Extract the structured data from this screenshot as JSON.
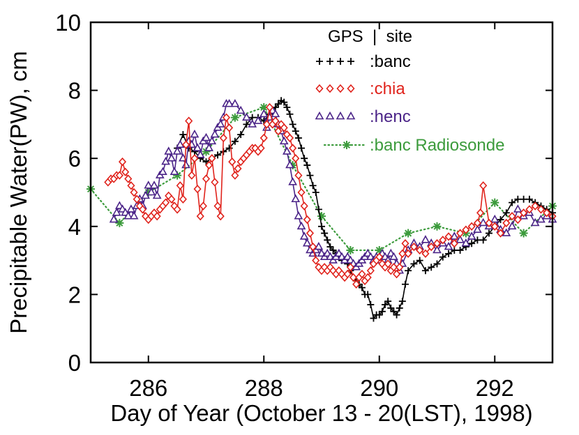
{
  "chart_data": {
    "type": "line",
    "title": "",
    "xlabel": "Day of Year (October 13 - 20(LST), 1998)",
    "ylabel": "Precipitable Water(PW), cm",
    "xlim": [
      285,
      293
    ],
    "ylim": [
      0,
      10
    ],
    "x_ticks": [
      286,
      288,
      290,
      292
    ],
    "y_ticks": [
      0,
      2,
      4,
      6,
      8,
      10
    ],
    "grid": false,
    "legend_position": "top-right",
    "legend_header": "GPS  |  site",
    "series": [
      {
        "name": "banc",
        "legend_marker": "++++",
        "legend_label": ":banc",
        "color": "#000000",
        "marker": "plus",
        "line": "solid",
        "x": [
          286.5,
          286.6,
          286.7,
          286.8,
          286.9,
          287.0,
          287.1,
          287.2,
          287.3,
          287.4,
          287.5,
          287.6,
          287.7,
          287.8,
          287.9,
          288.0,
          288.1,
          288.2,
          288.25,
          288.3,
          288.35,
          288.4,
          288.45,
          288.5,
          288.55,
          288.6,
          288.65,
          288.7,
          288.75,
          288.8,
          288.85,
          288.9,
          288.95,
          289.0,
          289.05,
          289.1,
          289.15,
          289.2,
          289.25,
          289.3,
          289.35,
          289.4,
          289.45,
          289.5,
          289.55,
          289.6,
          289.65,
          289.7,
          289.75,
          289.8,
          289.85,
          289.9,
          289.95,
          290.0,
          290.05,
          290.1,
          290.15,
          290.2,
          290.25,
          290.3,
          290.35,
          290.4,
          290.45,
          290.5,
          290.6,
          290.7,
          290.8,
          290.9,
          291.0,
          291.1,
          291.2,
          291.3,
          291.4,
          291.5,
          291.6,
          291.7,
          291.8,
          291.9,
          292.0,
          292.1,
          292.2,
          292.3,
          292.4,
          292.5,
          292.6,
          292.7,
          292.8,
          292.9,
          293.0
        ],
        "y": [
          6.3,
          6.7,
          6.3,
          6.2,
          6.0,
          5.9,
          6.0,
          6.1,
          6.2,
          6.3,
          6.5,
          6.7,
          7.0,
          7.2,
          7.2,
          7.1,
          7.3,
          7.5,
          7.6,
          7.7,
          7.65,
          7.5,
          7.3,
          7.0,
          6.8,
          6.6,
          6.3,
          6.0,
          5.8,
          5.5,
          5.2,
          5.0,
          4.5,
          4.0,
          3.8,
          3.6,
          3.4,
          3.3,
          3.2,
          3.1,
          3.0,
          3.0,
          2.9,
          2.7,
          2.5,
          2.4,
          2.3,
          2.2,
          2.0,
          2.0,
          1.7,
          1.3,
          1.4,
          1.4,
          1.5,
          1.7,
          1.8,
          1.6,
          1.5,
          1.4,
          1.6,
          1.8,
          2.3,
          2.7,
          2.9,
          3.0,
          2.7,
          2.8,
          2.9,
          3.1,
          3.2,
          3.3,
          3.3,
          3.4,
          3.5,
          3.6,
          3.6,
          3.8,
          4.0,
          4.2,
          4.4,
          4.7,
          4.8,
          4.8,
          4.8,
          4.7,
          4.6,
          4.5,
          4.4
        ]
      },
      {
        "name": "chia",
        "legend_marker": "◇◇◇◇",
        "legend_label": ":chia",
        "color": "#e0231c",
        "marker": "diamond",
        "line": "solid",
        "x": [
          285.3,
          285.35,
          285.4,
          285.45,
          285.5,
          285.55,
          285.6,
          285.65,
          285.7,
          285.75,
          285.8,
          285.85,
          285.9,
          285.95,
          286.0,
          286.05,
          286.1,
          286.15,
          286.2,
          286.25,
          286.3,
          286.35,
          286.4,
          286.45,
          286.5,
          286.55,
          286.6,
          286.65,
          286.7,
          286.75,
          286.8,
          286.85,
          286.9,
          286.95,
          287.0,
          287.05,
          287.1,
          287.15,
          287.2,
          287.25,
          287.3,
          287.35,
          287.4,
          287.45,
          287.5,
          287.55,
          287.6,
          287.65,
          287.7,
          287.75,
          287.8,
          287.85,
          287.9,
          287.95,
          288.0,
          288.05,
          288.1,
          288.15,
          288.2,
          288.25,
          288.3,
          288.35,
          288.4,
          288.45,
          288.5,
          288.55,
          288.6,
          288.65,
          288.7,
          288.75,
          288.8,
          288.85,
          288.9,
          288.95,
          289.0,
          289.05,
          289.1,
          289.15,
          289.2,
          289.25,
          289.3,
          289.35,
          289.4,
          289.45,
          289.5,
          289.55,
          289.6,
          289.65,
          289.7,
          289.75,
          289.8,
          289.85,
          289.9,
          289.95,
          290.0,
          290.05,
          290.1,
          290.15,
          290.2,
          290.25,
          290.3,
          290.35,
          290.4,
          290.45,
          290.5,
          290.6,
          290.7,
          290.8,
          290.9,
          291.0,
          291.1,
          291.2,
          291.3,
          291.4,
          291.5,
          291.6,
          291.7,
          291.75,
          291.8,
          291.9,
          292.0,
          292.1,
          292.2,
          292.3,
          292.4,
          292.5,
          292.6,
          292.7,
          292.8,
          292.9,
          293.0
        ],
        "y": [
          5.3,
          5.4,
          5.4,
          5.5,
          5.5,
          5.9,
          5.6,
          5.4,
          5.2,
          5.0,
          4.8,
          4.6,
          4.5,
          4.3,
          4.2,
          4.3,
          4.4,
          4.3,
          4.5,
          4.6,
          4.7,
          4.9,
          4.8,
          4.6,
          4.5,
          5.2,
          4.8,
          6.4,
          7.1,
          5.5,
          6.0,
          5.1,
          4.3,
          4.6,
          5.4,
          5.8,
          6.0,
          5.3,
          4.6,
          4.3,
          6.6,
          7.2,
          6.9,
          5.9,
          5.5,
          5.7,
          5.9,
          6.0,
          6.1,
          6.2,
          6.3,
          6.3,
          6.2,
          6.3,
          6.6,
          7.0,
          7.5,
          7.0,
          7.1,
          6.8,
          7.0,
          6.9,
          6.7,
          6.6,
          6.3,
          6.0,
          5.5,
          5.0,
          4.6,
          4.2,
          3.8,
          3.4,
          3.0,
          2.8,
          2.7,
          2.8,
          2.7,
          2.8,
          2.7,
          2.6,
          2.7,
          2.6,
          2.5,
          2.6,
          2.8,
          2.5,
          2.3,
          2.5,
          2.6,
          2.4,
          2.5,
          2.7,
          2.9,
          3.0,
          3.1,
          2.9,
          2.8,
          2.9,
          2.7,
          2.8,
          2.6,
          2.8,
          3.2,
          3.5,
          3.2,
          3.4,
          3.3,
          3.2,
          3.4,
          3.5,
          3.6,
          3.7,
          3.5,
          3.8,
          3.9,
          4.0,
          4.1,
          4.4,
          5.2,
          4.1,
          4.0,
          3.8,
          4.1,
          4.3,
          4.2,
          4.4,
          4.5,
          4.6,
          4.5,
          4.4,
          4.3
        ]
      },
      {
        "name": "henc",
        "legend_marker": "ΔΔΔΔ",
        "legend_label": ":henc",
        "color": "#4b2488",
        "marker": "triangle",
        "line": "solid",
        "x": [
          285.4,
          285.45,
          285.5,
          285.55,
          285.6,
          285.65,
          285.7,
          285.75,
          285.8,
          285.85,
          285.9,
          285.95,
          286.0,
          286.05,
          286.1,
          286.15,
          286.2,
          286.25,
          286.3,
          286.35,
          286.4,
          286.45,
          286.5,
          286.55,
          286.6,
          286.65,
          286.7,
          286.75,
          286.8,
          286.85,
          286.9,
          286.95,
          287.0,
          287.05,
          287.1,
          287.15,
          287.2,
          287.25,
          287.3,
          287.35,
          287.4,
          287.5,
          287.6,
          287.7,
          287.8,
          287.9,
          288.0,
          288.05,
          288.1,
          288.15,
          288.2,
          288.25,
          288.3,
          288.35,
          288.4,
          288.45,
          288.5,
          288.55,
          288.6,
          288.65,
          288.7,
          288.75,
          288.8,
          288.85,
          288.9,
          288.95,
          289.0,
          289.05,
          289.1,
          289.15,
          289.2,
          289.25,
          289.3,
          289.35,
          289.4,
          289.45,
          289.5,
          289.55,
          289.6,
          289.65,
          289.7,
          289.75,
          289.8,
          289.85,
          289.9,
          289.95,
          290.0,
          290.05,
          290.1,
          290.15,
          290.2,
          290.25,
          290.3,
          290.35,
          290.4,
          290.5,
          290.6,
          290.7,
          290.8,
          290.9,
          291.0,
          291.1,
          291.2,
          291.3,
          291.4,
          291.5,
          291.6,
          291.7,
          291.8,
          291.9,
          292.0,
          292.1,
          292.2,
          292.3,
          292.4,
          292.5,
          292.6,
          292.7,
          292.8,
          292.9,
          293.0
        ],
        "y": [
          4.2,
          4.4,
          4.6,
          4.5,
          4.4,
          4.3,
          4.5,
          4.3,
          4.6,
          4.8,
          4.6,
          4.9,
          5.2,
          5.0,
          5.2,
          4.9,
          5.5,
          5.6,
          5.9,
          6.2,
          6.0,
          5.6,
          6.2,
          6.4,
          6.0,
          5.8,
          6.5,
          6.4,
          6.7,
          6.3,
          6.1,
          6.5,
          6.6,
          6.3,
          6.5,
          6.7,
          6.9,
          7.0,
          7.2,
          7.6,
          7.6,
          7.6,
          7.4,
          7.2,
          7.0,
          7.1,
          7.3,
          6.9,
          7.2,
          7.4,
          7.3,
          7.0,
          6.8,
          6.5,
          6.2,
          5.8,
          5.3,
          4.8,
          4.3,
          4.0,
          3.7,
          3.5,
          3.3,
          3.2,
          3.3,
          3.4,
          3.2,
          3.1,
          3.2,
          3.1,
          3.0,
          3.1,
          3.2,
          3.1,
          3.0,
          3.1,
          3.0,
          2.9,
          2.8,
          2.9,
          3.0,
          3.1,
          3.2,
          3.1,
          3.0,
          3.1,
          3.0,
          3.2,
          3.1,
          3.0,
          3.2,
          3.1,
          2.9,
          2.7,
          2.9,
          3.3,
          3.5,
          3.4,
          3.6,
          3.5,
          3.3,
          3.5,
          3.4,
          3.7,
          3.6,
          3.5,
          3.7,
          3.9,
          4.1,
          4.0,
          4.2,
          3.9,
          3.8,
          4.0,
          4.5,
          4.3,
          4.4,
          4.1,
          4.2,
          4.3,
          4.2
        ]
      },
      {
        "name": "banc Radiosonde",
        "legend_marker": "-*-",
        "legend_label": ":banc Radiosonde",
        "color": "#3c9b3c",
        "marker": "asterisk",
        "line": "dotted",
        "x": [
          285.0,
          285.5,
          286.0,
          286.5,
          287.0,
          287.5,
          288.0,
          288.5,
          289.0,
          289.5,
          290.0,
          290.5,
          291.0,
          291.5,
          292.0,
          292.5,
          293.0
        ],
        "y": [
          5.1,
          4.1,
          5.0,
          5.5,
          6.2,
          7.2,
          7.5,
          5.8,
          4.3,
          3.3,
          3.3,
          3.8,
          4.0,
          3.8,
          4.7,
          3.8,
          4.6
        ]
      }
    ]
  }
}
